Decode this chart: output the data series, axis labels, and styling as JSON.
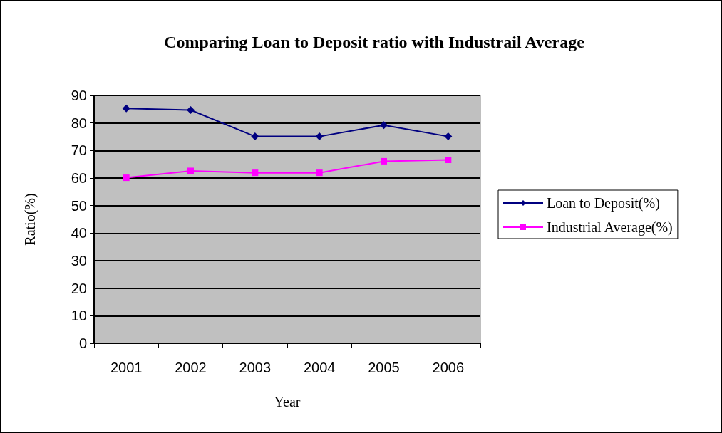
{
  "chart_data": {
    "type": "line",
    "title": "Comparing Loan to Deposit ratio with Industrail Average",
    "xlabel": "Year",
    "ylabel": "Ratio(%)",
    "categories": [
      "2001",
      "2002",
      "2003",
      "2004",
      "2005",
      "2006"
    ],
    "series": [
      {
        "name": "Loan to Deposit(%)",
        "color": "#000080",
        "marker": "diamond",
        "values": [
          85.3,
          84.7,
          75.1,
          75.1,
          79.2,
          75.1
        ]
      },
      {
        "name": "Industrial Average(%)",
        "color": "#ff00ff",
        "marker": "square",
        "values": [
          60.1,
          62.6,
          61.9,
          61.9,
          66.1,
          66.6
        ]
      }
    ],
    "ylim": [
      0,
      90
    ],
    "yticks": [
      0,
      10,
      20,
      30,
      40,
      50,
      60,
      70,
      80,
      90
    ],
    "grid": "y",
    "legend": "right"
  }
}
